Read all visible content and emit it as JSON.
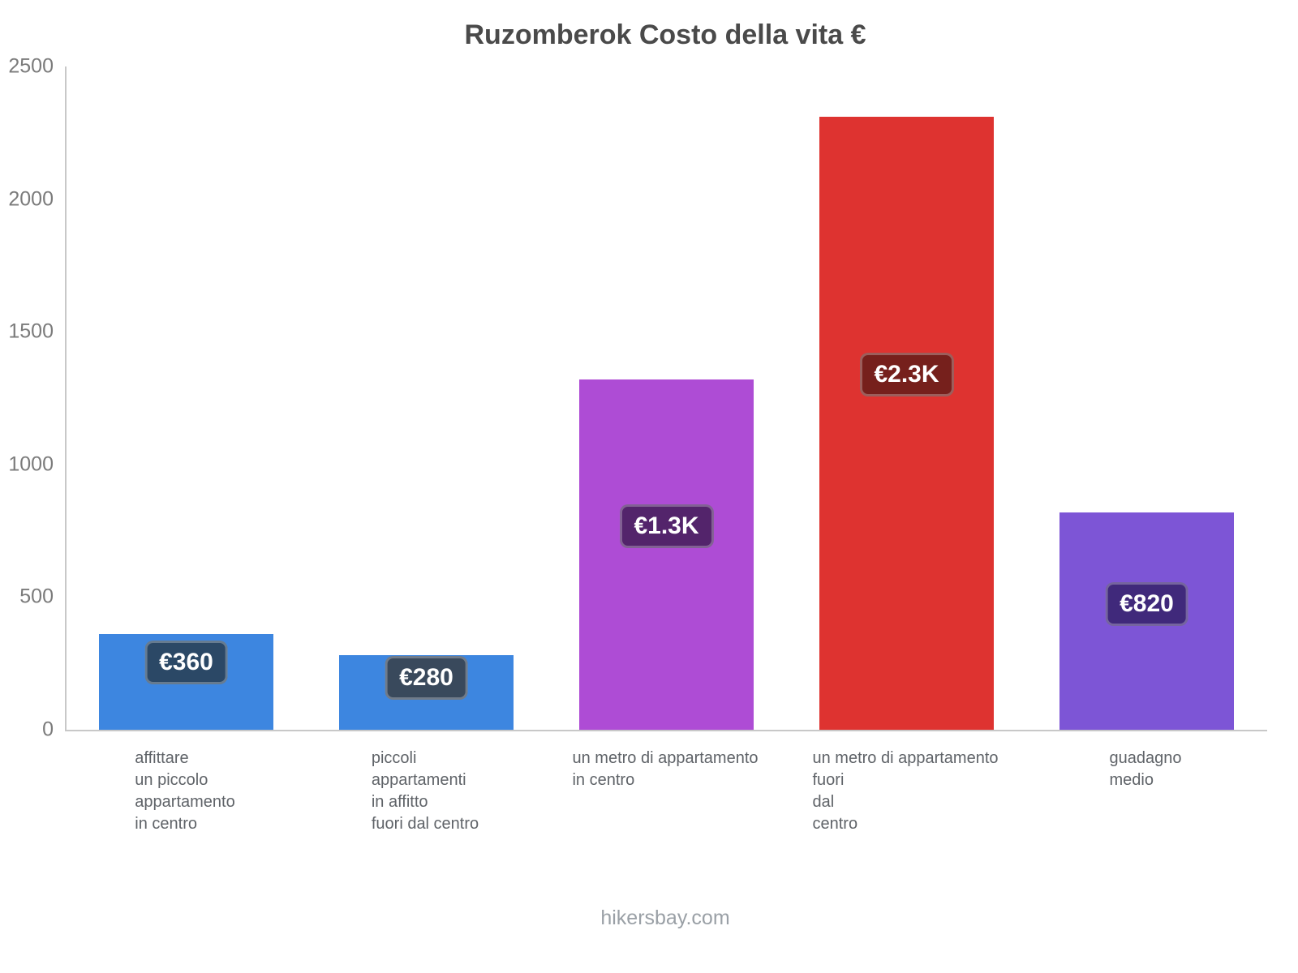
{
  "title": "Ruzomberok Costo della vita €",
  "footer": "hikersbay.com",
  "chart_data": {
    "type": "bar",
    "title": "Ruzomberok Costo della vita €",
    "ylabel": "",
    "xlabel": "",
    "y_max": 2500,
    "y_ticks": [
      0,
      500,
      1000,
      1500,
      2000,
      2500
    ],
    "grid": false,
    "legend": false,
    "bars": [
      {
        "label_lines": [
          "affittare",
          "un piccolo",
          "appartamento",
          "in centro"
        ],
        "value": 360,
        "display_value": "€360",
        "color": "#3d86e0",
        "badge_color": "#2b4866"
      },
      {
        "label_lines": [
          "piccoli",
          "appartamenti",
          "in affitto",
          "fuori dal centro"
        ],
        "value": 280,
        "display_value": "€280",
        "color": "#3d86e0",
        "badge_color": "#39495c"
      },
      {
        "label_lines": [
          "un metro di appartamento",
          "in centro"
        ],
        "value": 1320,
        "display_value": "€1.3K",
        "color": "#ae4cd5",
        "badge_color": "#53246b"
      },
      {
        "label_lines": [
          "un metro di appartamento",
          "fuori",
          "dal",
          "centro"
        ],
        "value": 2310,
        "display_value": "€2.3K",
        "color": "#de3330",
        "badge_color": "#76201c"
      },
      {
        "label_lines": [
          "guadagno",
          "medio"
        ],
        "value": 820,
        "display_value": "€820",
        "color": "#7d55d6",
        "badge_color": "#40297b"
      }
    ]
  }
}
